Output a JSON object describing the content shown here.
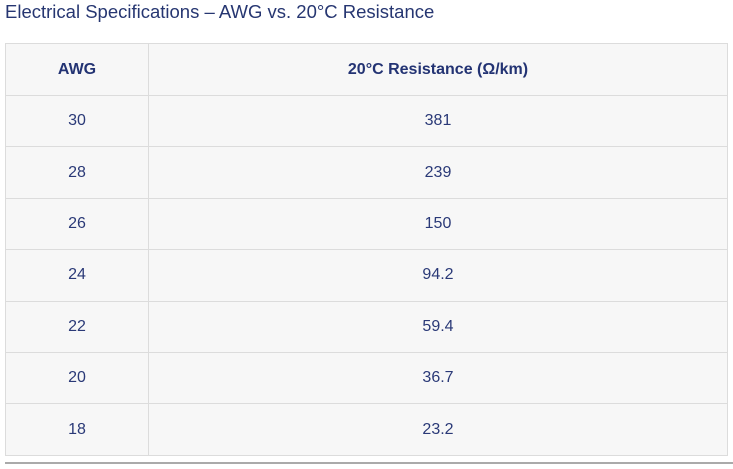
{
  "title": "Electrical Specifications – AWG vs. 20°C Resistance",
  "table": {
    "headers": [
      "AWG",
      "20°C Resistance (Ω/km)"
    ],
    "rows": [
      [
        "30",
        "381"
      ],
      [
        "28",
        "239"
      ],
      [
        "26",
        "150"
      ],
      [
        "24",
        "94.2"
      ],
      [
        "22",
        "59.4"
      ],
      [
        "20",
        "36.7"
      ],
      [
        "18",
        "23.2"
      ]
    ]
  }
}
